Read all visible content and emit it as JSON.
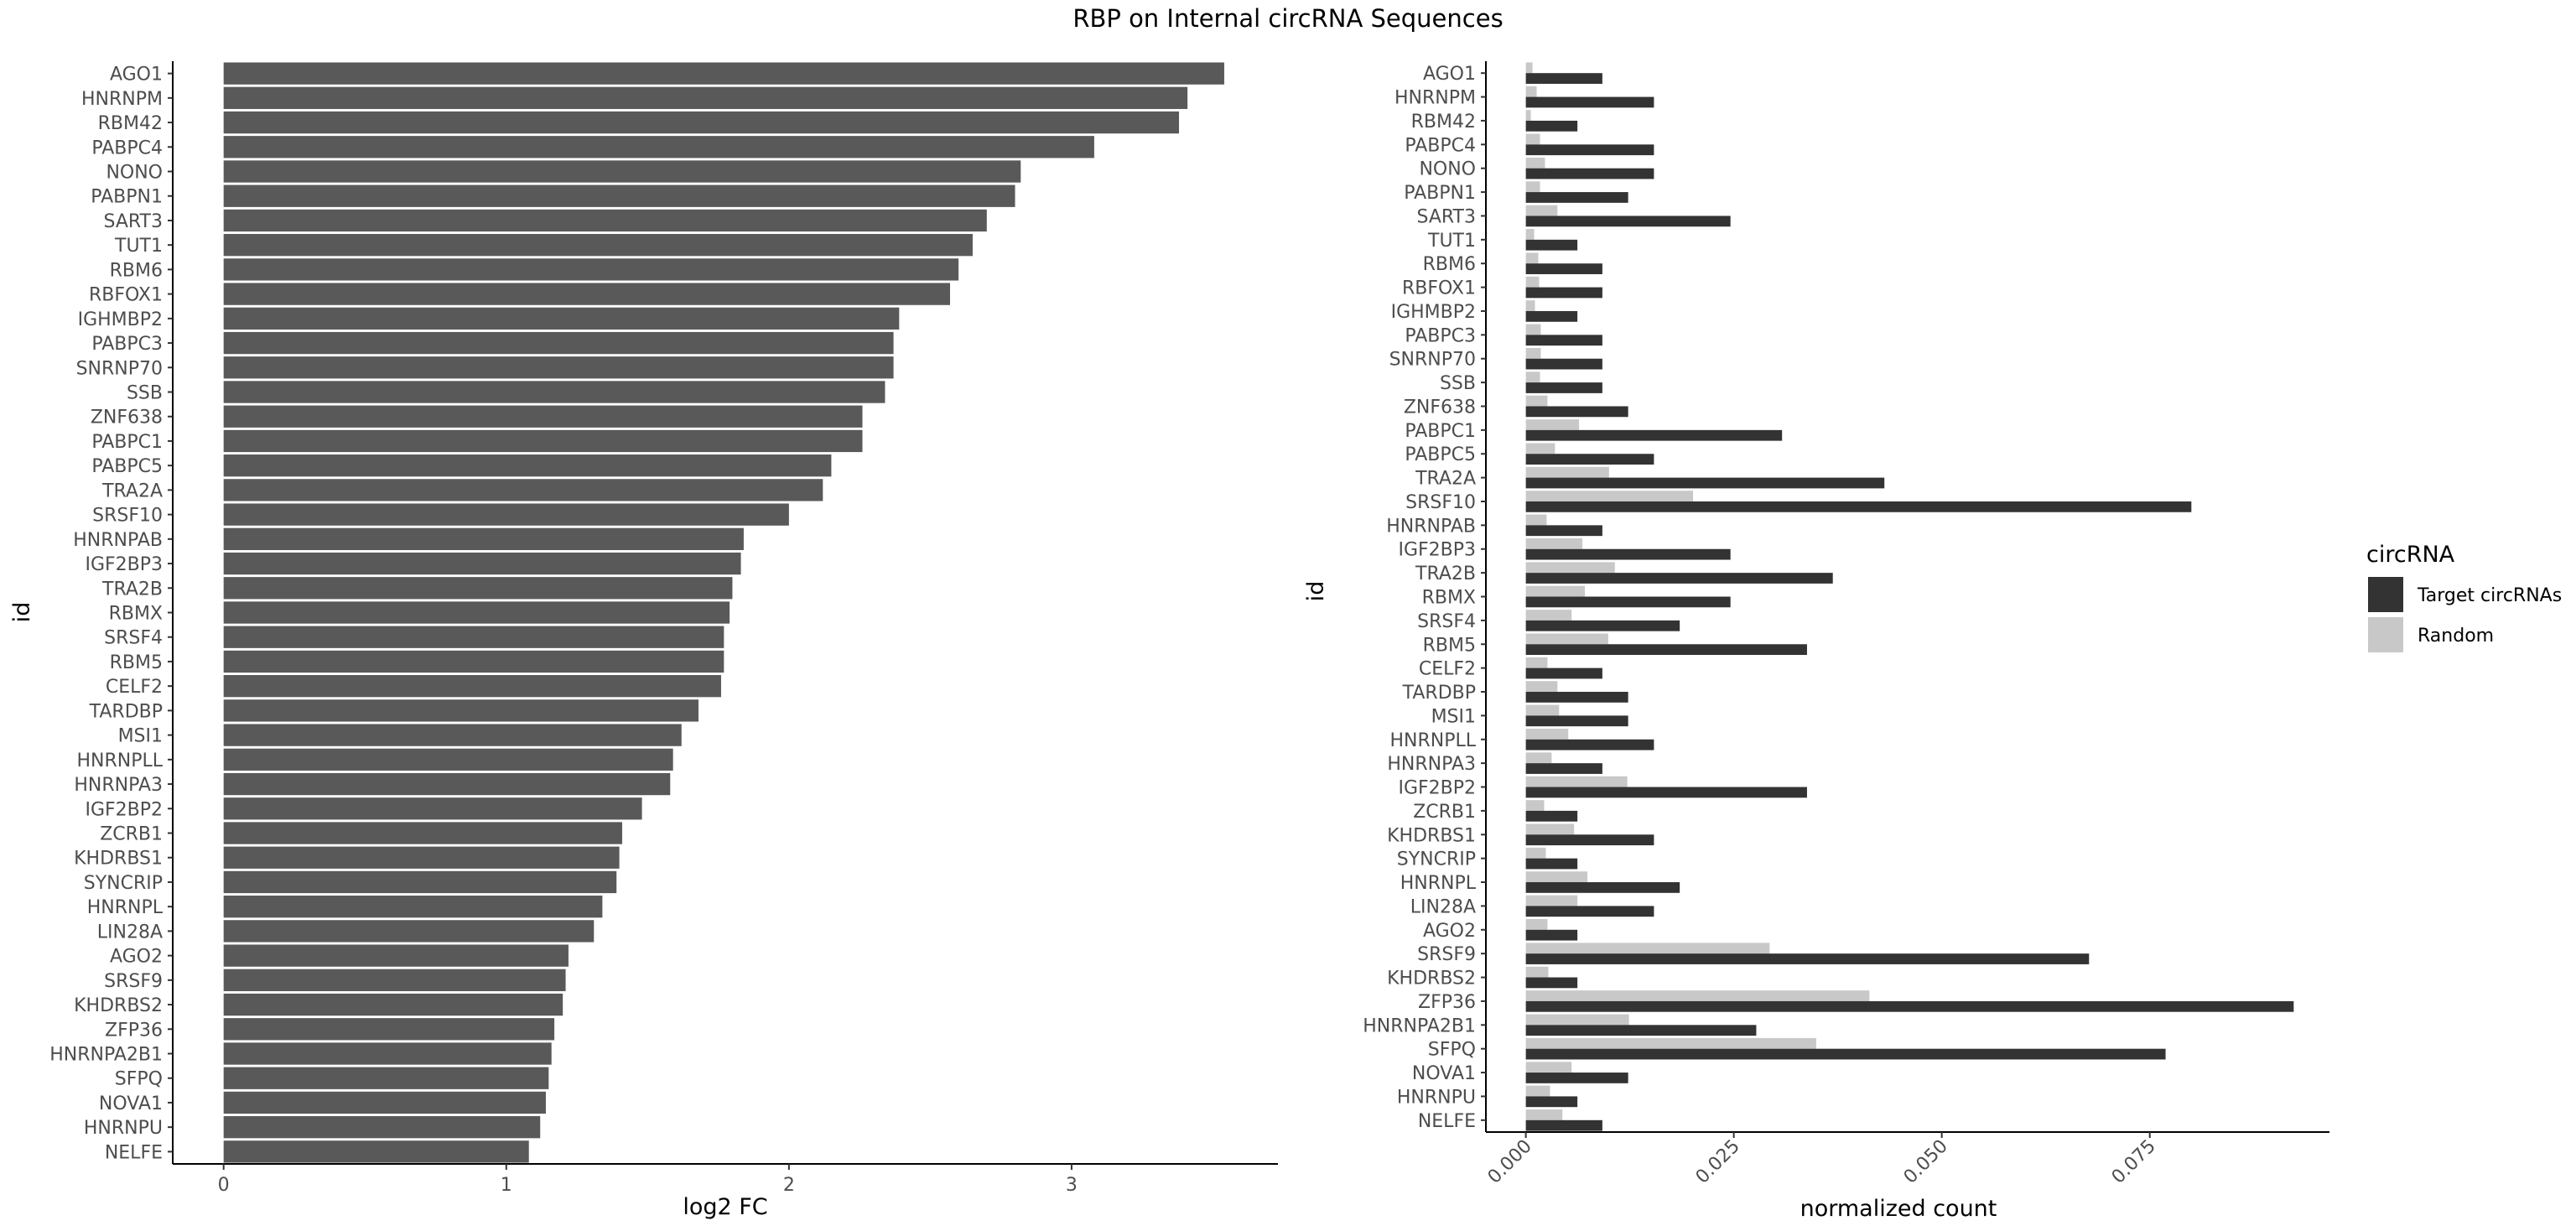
{
  "title": "RBP on Internal circRNA Sequences",
  "chart_data": [
    {
      "type": "bar",
      "orientation": "horizontal",
      "xlabel": "log2 FC",
      "ylabel": "id",
      "xlim": [
        -0.18,
        3.73
      ],
      "xticks": [
        0,
        1,
        2,
        3
      ],
      "grid": false,
      "bar_color": "#595959",
      "categories": [
        "AGO1",
        "HNRNPM",
        "RBM42",
        "PABPC4",
        "NONO",
        "PABPN1",
        "SART3",
        "TUT1",
        "RBM6",
        "RBFOX1",
        "IGHMBP2",
        "PABPC3",
        "SNRNP70",
        "SSB",
        "ZNF638",
        "PABPC1",
        "PABPC5",
        "TRA2A",
        "SRSF10",
        "HNRNPAB",
        "IGF2BP3",
        "TRA2B",
        "RBMX",
        "SRSF4",
        "RBM5",
        "CELF2",
        "TARDBP",
        "MSI1",
        "HNRNPLL",
        "HNRNPA3",
        "IGF2BP2",
        "ZCRB1",
        "KHDRBS1",
        "SYNCRIP",
        "HNRNPL",
        "LIN28A",
        "AGO2",
        "SRSF9",
        "KHDRBS2",
        "ZFP36",
        "HNRNPA2B1",
        "SFPQ",
        "NOVA1",
        "HNRNPU",
        "NELFE"
      ],
      "values": [
        3.54,
        3.41,
        3.38,
        3.08,
        2.82,
        2.8,
        2.7,
        2.65,
        2.6,
        2.57,
        2.39,
        2.37,
        2.37,
        2.34,
        2.26,
        2.26,
        2.15,
        2.12,
        2.0,
        1.84,
        1.83,
        1.8,
        1.79,
        1.77,
        1.77,
        1.76,
        1.68,
        1.62,
        1.59,
        1.58,
        1.48,
        1.41,
        1.4,
        1.39,
        1.34,
        1.31,
        1.22,
        1.21,
        1.2,
        1.17,
        1.16,
        1.15,
        1.14,
        1.12,
        1.08
      ]
    },
    {
      "type": "bar",
      "orientation": "horizontal",
      "grouped": true,
      "xlabel": "normalized count",
      "ylabel": "id",
      "xlim": [
        -0.0048,
        0.0966
      ],
      "xticks": [
        "0.000",
        "0.025",
        "0.050",
        "0.075"
      ],
      "xtick_rotation": -45,
      "grid": false,
      "legend_title": "circRNA",
      "legend_position": "right",
      "categories": [
        "AGO1",
        "HNRNPM",
        "RBM42",
        "PABPC4",
        "NONO",
        "PABPN1",
        "SART3",
        "TUT1",
        "RBM6",
        "RBFOX1",
        "IGHMBP2",
        "PABPC3",
        "SNRNP70",
        "SSB",
        "ZNF638",
        "PABPC1",
        "PABPC5",
        "TRA2A",
        "SRSF10",
        "HNRNPAB",
        "IGF2BP3",
        "TRA2B",
        "RBMX",
        "SRSF4",
        "RBM5",
        "CELF2",
        "TARDBP",
        "MSI1",
        "HNRNPLL",
        "HNRNPA3",
        "IGF2BP2",
        "ZCRB1",
        "KHDRBS1",
        "SYNCRIP",
        "HNRNPL",
        "LIN28A",
        "AGO2",
        "SRSF9",
        "KHDRBS2",
        "ZFP36",
        "HNRNPA2B1",
        "SFPQ",
        "NOVA1",
        "HNRNPU",
        "NELFE"
      ],
      "series": [
        {
          "name": "Target circRNAs",
          "color": "#333333",
          "values": [
            0.0092,
            0.0154,
            0.0062,
            0.0154,
            0.0154,
            0.0123,
            0.0246,
            0.0062,
            0.0092,
            0.0092,
            0.0062,
            0.0092,
            0.0092,
            0.0092,
            0.0123,
            0.0308,
            0.0154,
            0.0431,
            0.08,
            0.0092,
            0.0246,
            0.0369,
            0.0246,
            0.0185,
            0.0338,
            0.0092,
            0.0123,
            0.0123,
            0.0154,
            0.0092,
            0.0338,
            0.0062,
            0.0154,
            0.0062,
            0.0185,
            0.0154,
            0.0062,
            0.0677,
            0.0062,
            0.0923,
            0.0277,
            0.0769,
            0.0123,
            0.0062,
            0.0092
          ]
        },
        {
          "name": "Random",
          "color": "#c8c8c8",
          "values": [
            0.0008,
            0.0013,
            0.0006,
            0.0017,
            0.0023,
            0.0017,
            0.0038,
            0.001,
            0.0015,
            0.0016,
            0.0011,
            0.0018,
            0.0018,
            0.0017,
            0.0026,
            0.0064,
            0.0035,
            0.01,
            0.0201,
            0.0025,
            0.0068,
            0.0107,
            0.0071,
            0.0055,
            0.0099,
            0.0026,
            0.0038,
            0.004,
            0.0051,
            0.0031,
            0.0122,
            0.0022,
            0.0058,
            0.0024,
            0.0074,
            0.0062,
            0.0026,
            0.0293,
            0.0027,
            0.0413,
            0.0124,
            0.0349,
            0.0055,
            0.0029,
            0.0044
          ]
        }
      ]
    }
  ]
}
